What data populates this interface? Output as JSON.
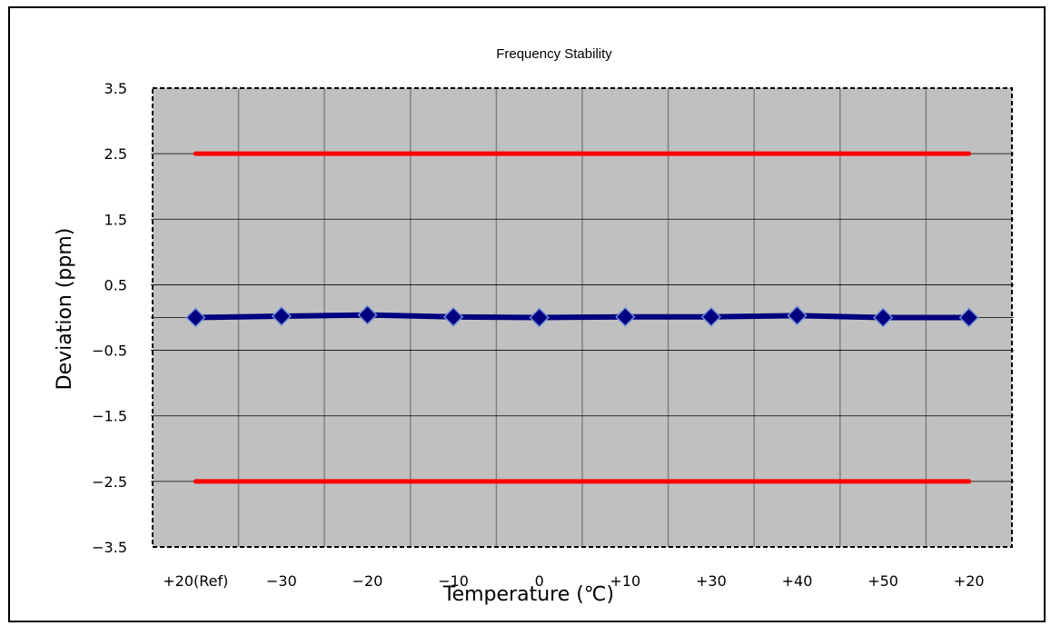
{
  "chart_data": {
    "type": "line",
    "title": "Frequency Stability",
    "xlabel": "Temperature (℃)",
    "ylabel": "Deviation (ppm)",
    "categories": [
      "+20(Ref)",
      "−30",
      "−20",
      "−10",
      "0",
      "+10",
      "+30",
      "+40",
      "+50",
      "+20"
    ],
    "y_ticks": [
      "3.5",
      "2.5",
      "1.5",
      "0.5",
      "−0.5",
      "−1.5",
      "−2.5",
      "−3.5"
    ],
    "ylim": [
      -3.5,
      3.5
    ],
    "grid": true,
    "legend": "none",
    "series": [
      {
        "values": [
          0.0,
          0.02,
          0.04,
          0.01,
          0.0,
          0.01,
          0.01,
          0.03,
          0.0,
          0.0
        ],
        "color": "#000080",
        "marker": "diamond"
      },
      {
        "values": [
          2.5,
          2.5,
          2.5,
          2.5,
          2.5,
          2.5,
          2.5,
          2.5,
          2.5,
          2.5
        ],
        "color": "#ff0000",
        "marker": "none"
      },
      {
        "values": [
          -2.5,
          -2.5,
          -2.5,
          -2.5,
          -2.5,
          -2.5,
          -2.5,
          -2.5,
          -2.5,
          -2.5
        ],
        "color": "#ff0000",
        "marker": "none"
      }
    ],
    "plot_background": "#c0c0c0"
  }
}
